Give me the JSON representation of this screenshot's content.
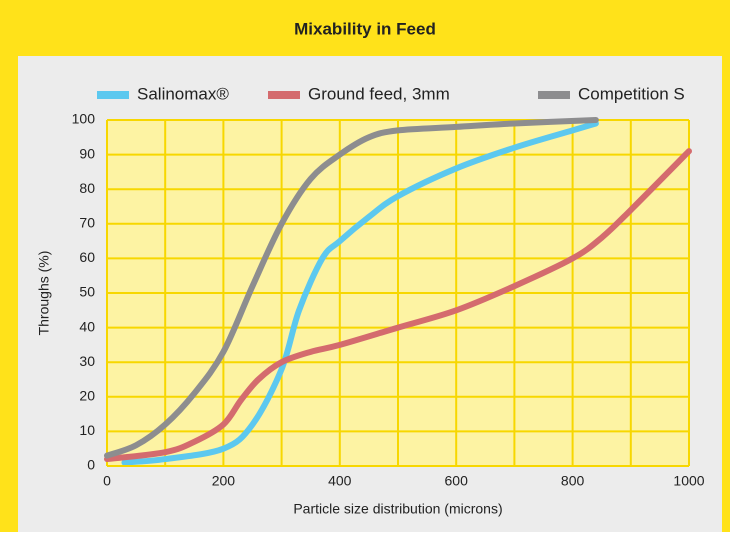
{
  "chart_data": {
    "type": "line",
    "title": "Mixability in Feed",
    "xlabel": "Particle size distribution (microns)",
    "ylabel": "Throughs (%)",
    "xlim": [
      0,
      1000
    ],
    "xticks": [
      0,
      200,
      400,
      600,
      800,
      1000
    ],
    "ylim": [
      0,
      100
    ],
    "yticks": [
      0,
      10,
      20,
      30,
      40,
      50,
      60,
      70,
      80,
      90,
      100
    ],
    "xgrid_step": 100,
    "grid": true,
    "series": [
      {
        "name": "Salinomax®",
        "color": "#5cc8ef",
        "x": [
          30,
          100,
          200,
          250,
          300,
          330,
          370,
          400,
          450,
          500,
          600,
          700,
          800,
          840
        ],
        "values": [
          1,
          2,
          5,
          12,
          28,
          45,
          60,
          65,
          72,
          78,
          86,
          92,
          97,
          99
        ]
      },
      {
        "name": "Ground feed, 3mm",
        "color": "#d46b6e",
        "x": [
          0,
          100,
          150,
          200,
          230,
          260,
          300,
          350,
          400,
          500,
          600,
          700,
          800,
          850,
          900,
          1000
        ],
        "values": [
          2,
          4,
          7,
          12,
          19,
          25,
          30,
          33,
          35,
          40,
          45,
          52,
          60,
          66,
          74,
          91
        ]
      },
      {
        "name": "Competition S",
        "color": "#8d8d8f",
        "x": [
          0,
          50,
          100,
          150,
          200,
          250,
          300,
          350,
          400,
          450,
          500,
          600,
          700,
          840
        ],
        "values": [
          3,
          6,
          12,
          21,
          33,
          52,
          70,
          83,
          90,
          95,
          97,
          98,
          99,
          100
        ]
      }
    ]
  }
}
